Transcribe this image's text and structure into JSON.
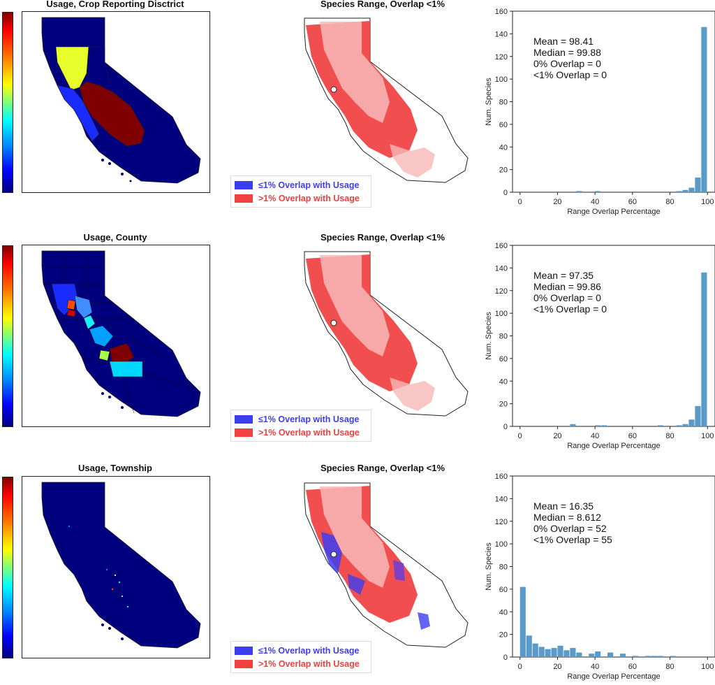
{
  "colors": {
    "low_blue": "#3d3df0",
    "high_red": "#f04040",
    "red_lt": "#f8b8b8",
    "bar": "#5a9ac9",
    "map_dark": "#00007f",
    "map_blue": "#1a2bff",
    "map_yellow": "#e8ff2c",
    "map_maroon": "#7f0000",
    "map_cyan": "#00d8ff",
    "map_orange": "#ff4a00"
  },
  "rows": [
    {
      "usage_title": "Usage, Crop Reporting Disctrict",
      "range_title": "Species Range, Overlap <1%",
      "legend": {
        "low": "≤1% Overlap with Usage",
        "high": ">1% Overlap with Usage"
      }
    },
    {
      "usage_title": "Usage, County",
      "range_title": "Species Range, Overlap <1%",
      "legend": {
        "low": "≤1% Overlap with Usage",
        "high": ">1% Overlap with Usage"
      }
    },
    {
      "usage_title": "Usage, Township",
      "range_title": "Species Range, Overlap <1%",
      "legend": {
        "low": "≤1% Overlap with Usage",
        "high": ">1% Overlap with Usage"
      }
    }
  ],
  "chart_data": [
    {
      "type": "bar",
      "xlabel": "Range Overlap Percentage",
      "ylabel": "Num. Species",
      "xlim": [
        -4,
        104
      ],
      "ylim": [
        0,
        160
      ],
      "xticks": [
        0,
        20,
        40,
        60,
        80,
        100
      ],
      "yticks": [
        0,
        20,
        40,
        60,
        80,
        100,
        120,
        140,
        160
      ],
      "bin_width": 3.33,
      "bins_start": [
        0,
        3.33,
        6.67,
        10,
        13.33,
        16.67,
        20,
        23.33,
        26.67,
        30,
        33.33,
        36.67,
        40,
        43.33,
        46.67,
        50,
        53.33,
        56.67,
        60,
        63.33,
        66.67,
        70,
        73.33,
        76.67,
        80,
        83.33,
        86.67,
        90,
        93.33,
        96.67
      ],
      "values": [
        0,
        0,
        0,
        0,
        0,
        0,
        0,
        0,
        0,
        1,
        0,
        0,
        1,
        0,
        0,
        0,
        0,
        0,
        0,
        0,
        0,
        0,
        0,
        0,
        0,
        1,
        2,
        4,
        13,
        146
      ],
      "stats": [
        "Mean = 98.41",
        "Median = 99.88",
        "0% Overlap = 0",
        "<1% Overlap = 0"
      ]
    },
    {
      "type": "bar",
      "xlabel": "Range Overlap Percentage",
      "ylabel": "Num. Species",
      "xlim": [
        -4,
        104
      ],
      "ylim": [
        0,
        160
      ],
      "xticks": [
        0,
        20,
        40,
        60,
        80,
        100
      ],
      "yticks": [
        0,
        20,
        40,
        60,
        80,
        100,
        120,
        140,
        160
      ],
      "bin_width": 3.33,
      "bins_start": [
        0,
        3.33,
        6.67,
        10,
        13.33,
        16.67,
        20,
        23.33,
        26.67,
        30,
        33.33,
        36.67,
        40,
        43.33,
        46.67,
        50,
        53.33,
        56.67,
        60,
        63.33,
        66.67,
        70,
        73.33,
        76.67,
        80,
        83.33,
        86.67,
        90,
        93.33,
        96.67
      ],
      "values": [
        0,
        0,
        0,
        0,
        0,
        0,
        0,
        0,
        2,
        0,
        0,
        0,
        1,
        1,
        0,
        0,
        0,
        0,
        0,
        0,
        0,
        0,
        1,
        0,
        0,
        1,
        2,
        6,
        18,
        136
      ],
      "stats": [
        "Mean = 97.35",
        "Median = 99.86",
        "0% Overlap = 0",
        "<1% Overlap = 0"
      ]
    },
    {
      "type": "bar",
      "xlabel": "Range Overlap Percentage",
      "ylabel": "Num. Species",
      "xlim": [
        -4,
        104
      ],
      "ylim": [
        0,
        160
      ],
      "xticks": [
        0,
        20,
        40,
        60,
        80,
        100
      ],
      "yticks": [
        0,
        20,
        40,
        60,
        80,
        100,
        120,
        140,
        160
      ],
      "bin_width": 3.33,
      "bins_start": [
        0,
        3.33,
        6.67,
        10,
        13.33,
        16.67,
        20,
        23.33,
        26.67,
        30,
        33.33,
        36.67,
        40,
        43.33,
        46.67,
        50,
        53.33,
        56.67,
        60,
        63.33,
        66.67,
        70,
        73.33,
        76.67,
        80,
        83.33,
        86.67,
        90,
        93.33,
        96.67
      ],
      "values": [
        62,
        19,
        12,
        9,
        7,
        8,
        10,
        6,
        8,
        4,
        0,
        3,
        5,
        0,
        4,
        0,
        3,
        0,
        1,
        0,
        1,
        1,
        1,
        0,
        1,
        0,
        0,
        0,
        0,
        0
      ],
      "stats": [
        "Mean = 16.35",
        "Median = 8.612",
        "0% Overlap = 52",
        "<1% Overlap = 55"
      ]
    }
  ]
}
